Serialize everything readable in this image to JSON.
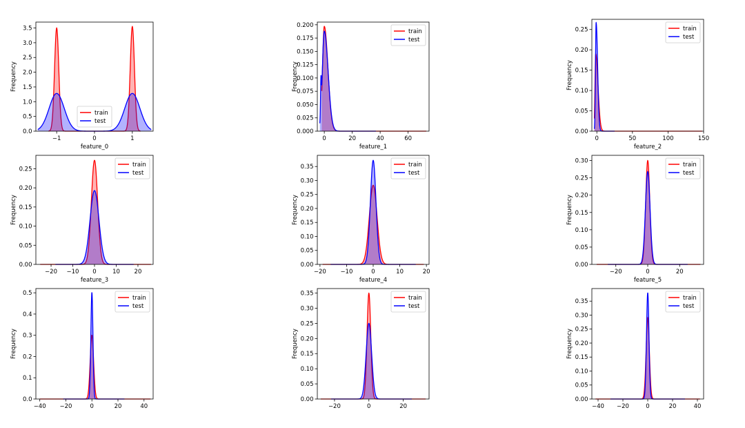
{
  "colors": {
    "train": "#ff0000",
    "test": "#0000ff",
    "overlap": "#9a4fb4"
  },
  "chart_data": [
    {
      "type": "area",
      "xlabel": "feature_0",
      "ylabel": "Frequency",
      "xlim": [
        -1.55,
        1.55
      ],
      "ylim": [
        0,
        3.7
      ],
      "xticks": [
        -1,
        0,
        1
      ],
      "xtick_labels": [
        "−1",
        "0",
        "1"
      ],
      "yticks": [
        0,
        0.5,
        1,
        1.5,
        2,
        2.5,
        3,
        3.5
      ],
      "ytick_labels": [
        "0.0",
        "0.5",
        "1.0",
        "1.5",
        "2.0",
        "2.5",
        "3.0",
        "3.5"
      ],
      "legend": "lower-center",
      "series": [
        {
          "name": "train",
          "components": [
            {
              "mu": -1,
              "sigma": 0.056,
              "peak": 3.5
            },
            {
              "mu": 1,
              "sigma": 0.056,
              "peak": 3.55
            }
          ],
          "range": [
            -1.22,
            1.22
          ]
        },
        {
          "name": "test",
          "components": [
            {
              "mu": -1,
              "sigma": 0.2,
              "peak": 1.28
            },
            {
              "mu": 1,
              "sigma": 0.2,
              "peak": 1.28
            }
          ],
          "range": [
            -1.5,
            1.5
          ]
        }
      ]
    },
    {
      "type": "area",
      "xlabel": "feature_1",
      "ylabel": "Frequency",
      "xlim": [
        -5,
        75
      ],
      "ylim": [
        0,
        0.205
      ],
      "xticks": [
        0,
        20,
        40,
        60
      ],
      "xtick_labels": [
        "0",
        "20",
        "40",
        "60"
      ],
      "yticks": [
        0,
        0.025,
        0.05,
        0.075,
        0.1,
        0.125,
        0.15,
        0.175,
        0.2
      ],
      "ytick_labels": [
        "0.000",
        "0.025",
        "0.050",
        "0.075",
        "0.100",
        "0.125",
        "0.150",
        "0.175",
        "0.200"
      ],
      "legend": "upper-right",
      "series": [
        {
          "name": "train",
          "components": [
            {
              "mu": 0,
              "sigma": 1.3,
              "sigma_right": 2.6,
              "peak": 0.197
            }
          ],
          "range": [
            -1.8,
            73
          ]
        },
        {
          "name": "test",
          "components": [
            {
              "mu": 0,
              "sigma": 1.4,
              "sigma_right": 2.7,
              "peak": 0.188
            },
            {
              "mu": -2.4,
              "sigma": 0.28,
              "peak": 0.06
            }
          ],
          "range": [
            -3.2,
            37
          ]
        }
      ]
    },
    {
      "type": "area",
      "xlabel": "feature_2",
      "ylabel": "Frequency",
      "xlim": [
        -7,
        150
      ],
      "ylim": [
        0,
        0.275
      ],
      "xticks": [
        0,
        50,
        100,
        150
      ],
      "xtick_labels": [
        "0",
        "50",
        "100",
        "150"
      ],
      "yticks": [
        0,
        0.05,
        0.1,
        0.15,
        0.2,
        0.25
      ],
      "ytick_labels": [
        "0.00",
        "0.05",
        "0.10",
        "0.15",
        "0.20",
        "0.25"
      ],
      "legend": "upper-right",
      "series": [
        {
          "name": "train",
          "components": [
            {
              "mu": -1.6,
              "sigma": 1.0,
              "sigma_right": 3.2,
              "peak": 0.19
            }
          ],
          "range": [
            -3.5,
            148
          ]
        },
        {
          "name": "test",
          "components": [
            {
              "mu": -1,
              "sigma": 0.9,
              "sigma_right": 2.1,
              "peak": 0.267
            }
          ],
          "range": [
            -3.5,
            25
          ]
        }
      ]
    },
    {
      "type": "area",
      "xlabel": "feature_3",
      "ylabel": "Frequency",
      "xlim": [
        -27,
        27
      ],
      "ylim": [
        0,
        0.285
      ],
      "xticks": [
        -20,
        -10,
        0,
        10,
        20
      ],
      "xtick_labels": [
        "−20",
        "−10",
        "0",
        "10",
        "20"
      ],
      "yticks": [
        0,
        0.05,
        0.1,
        0.15,
        0.2,
        0.25
      ],
      "ytick_labels": [
        "0.00",
        "0.05",
        "0.10",
        "0.15",
        "0.20",
        "0.25"
      ],
      "legend": "upper-right",
      "series": [
        {
          "name": "train",
          "components": [
            {
              "mu": 0,
              "sigma": 1.45,
              "peak": 0.272
            }
          ],
          "range": [
            -25,
            26
          ]
        },
        {
          "name": "test",
          "components": [
            {
              "mu": 0,
              "sigma": 2.05,
              "peak": 0.193
            }
          ],
          "range": [
            -18,
            18
          ]
        }
      ]
    },
    {
      "type": "area",
      "xlabel": "feature_4",
      "ylabel": "Frequency",
      "xlim": [
        -21,
        21
      ],
      "ylim": [
        0,
        0.39
      ],
      "xticks": [
        -20,
        -10,
        0,
        10,
        20
      ],
      "xtick_labels": [
        "−20",
        "−10",
        "0",
        "10",
        "20"
      ],
      "yticks": [
        0,
        0.05,
        0.1,
        0.15,
        0.2,
        0.25,
        0.3,
        0.35
      ],
      "ytick_labels": [
        "0.00",
        "0.05",
        "0.10",
        "0.15",
        "0.20",
        "0.25",
        "0.30",
        "0.35"
      ],
      "legend": "upper-right",
      "series": [
        {
          "name": "train",
          "components": [
            {
              "mu": 0,
              "sigma": 1.45,
              "peak": 0.283
            }
          ],
          "range": [
            -19,
            19
          ]
        },
        {
          "name": "test",
          "components": [
            {
              "mu": 0,
              "sigma": 1.05,
              "peak": 0.372
            }
          ],
          "range": [
            -16,
            16
          ]
        }
      ]
    },
    {
      "type": "area",
      "xlabel": "feature_5",
      "ylabel": "Frequency",
      "xlim": [
        -35,
        35
      ],
      "ylim": [
        0,
        0.315
      ],
      "xticks": [
        -20,
        0,
        20
      ],
      "xtick_labels": [
        "−20",
        "0",
        "20"
      ],
      "yticks": [
        0,
        0.05,
        0.1,
        0.15,
        0.2,
        0.25,
        0.3
      ],
      "ytick_labels": [
        "0.00",
        "0.05",
        "0.10",
        "0.15",
        "0.20",
        "0.25",
        "0.30"
      ],
      "legend": "upper-right",
      "series": [
        {
          "name": "train",
          "components": [
            {
              "mu": 0,
              "sigma": 1.3,
              "peak": 0.3
            }
          ],
          "range": [
            -32,
            33
          ]
        },
        {
          "name": "test",
          "components": [
            {
              "mu": 0,
              "sigma": 1.45,
              "peak": 0.268
            }
          ],
          "range": [
            -25,
            25
          ]
        }
      ]
    },
    {
      "type": "area",
      "xlabel": "",
      "ylabel": "Frequency",
      "xlim": [
        -43,
        47
      ],
      "ylim": [
        0,
        0.52
      ],
      "xticks": [
        -40,
        -20,
        0,
        20,
        40
      ],
      "xtick_labels": [
        "−40",
        "−20",
        "0",
        "20",
        "40"
      ],
      "yticks": [
        0,
        0.1,
        0.2,
        0.3,
        0.4,
        0.5
      ],
      "ytick_labels": [
        "0.0",
        "0.1",
        "0.2",
        "0.3",
        "0.4",
        "0.5"
      ],
      "legend": "upper-right",
      "series": [
        {
          "name": "train",
          "components": [
            {
              "mu": 0,
              "sigma": 1.3,
              "peak": 0.3
            }
          ],
          "range": [
            -40,
            45
          ]
        },
        {
          "name": "test",
          "components": [
            {
              "mu": 0,
              "sigma": 0.8,
              "peak": 0.502
            }
          ],
          "range": [
            -22,
            25
          ]
        }
      ]
    },
    {
      "type": "area",
      "xlabel": "",
      "ylabel": "Frequency",
      "xlim": [
        -30,
        35
      ],
      "ylim": [
        0,
        0.365
      ],
      "xticks": [
        -20,
        0,
        20
      ],
      "xtick_labels": [
        "−20",
        "0",
        "20"
      ],
      "yticks": [
        0,
        0.05,
        0.1,
        0.15,
        0.2,
        0.25,
        0.3,
        0.35
      ],
      "ytick_labels": [
        "0.00",
        "0.05",
        "0.10",
        "0.15",
        "0.20",
        "0.25",
        "0.30",
        "0.35"
      ],
      "legend": "upper-right",
      "series": [
        {
          "name": "train",
          "components": [
            {
              "mu": 0,
              "sigma": 1.1,
              "peak": 0.35
            }
          ],
          "range": [
            -28,
            33
          ]
        },
        {
          "name": "test",
          "components": [
            {
              "mu": 0,
              "sigma": 1.6,
              "peak": 0.25
            }
          ],
          "range": [
            -22,
            25
          ]
        }
      ]
    },
    {
      "type": "area",
      "xlabel": "",
      "ylabel": "Frequency",
      "xlim": [
        -45,
        45
      ],
      "ylim": [
        0,
        0.395
      ],
      "xticks": [
        -40,
        -20,
        0,
        20,
        40
      ],
      "xtick_labels": [
        "−40",
        "−20",
        "0",
        "20",
        "40"
      ],
      "yticks": [
        0,
        0.05,
        0.1,
        0.15,
        0.2,
        0.25,
        0.3,
        0.35
      ],
      "ytick_labels": [
        "0.00",
        "0.05",
        "0.10",
        "0.15",
        "0.20",
        "0.25",
        "0.30",
        "0.35"
      ],
      "legend": "upper-right",
      "series": [
        {
          "name": "train",
          "components": [
            {
              "mu": 0,
              "sigma": 1.3,
              "peak": 0.29
            }
          ],
          "range": [
            -42,
            42
          ]
        },
        {
          "name": "test",
          "components": [
            {
              "mu": 0,
              "sigma": 1.0,
              "peak": 0.38
            }
          ],
          "range": [
            -30,
            30
          ]
        }
      ]
    }
  ]
}
